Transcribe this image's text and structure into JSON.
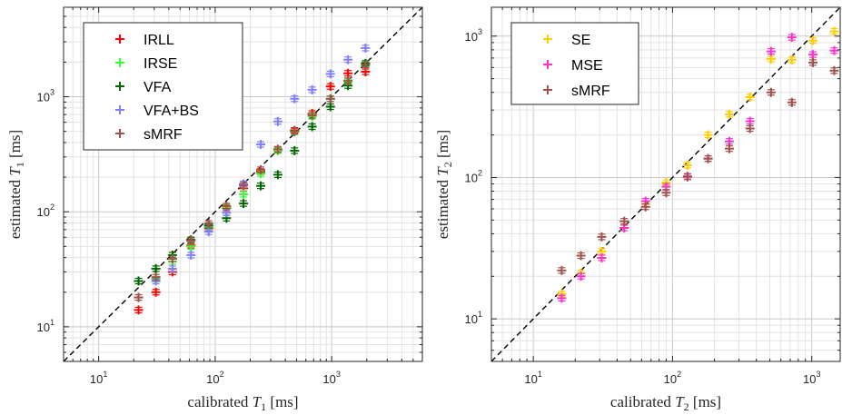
{
  "chart_data": [
    {
      "type": "scatter",
      "scale": "log-log",
      "xlabel": "calibrated T1 [ms]",
      "ylabel": "estimated T1 [ms]",
      "xlabel_parts": {
        "pre": "calibrated ",
        "var": "T",
        "sub": "1",
        "post": " [ms]"
      },
      "ylabel_parts": {
        "pre": "estimated ",
        "var": "T",
        "sub": "1",
        "post": " [ms]"
      },
      "xlim": [
        5,
        6000
      ],
      "ylim": [
        5,
        6000
      ],
      "grid": true,
      "identity_line": true,
      "legend_position": "top-left",
      "x_ticks": [
        {
          "value": 10,
          "base": "10",
          "exp": "1"
        },
        {
          "value": 100,
          "base": "10",
          "exp": "2"
        },
        {
          "value": 1000,
          "base": "10",
          "exp": "3"
        }
      ],
      "y_ticks": [
        {
          "value": 10,
          "base": "10",
          "exp": "1"
        },
        {
          "value": 100,
          "base": "10",
          "exp": "2"
        },
        {
          "value": 1000,
          "base": "10",
          "exp": "3"
        }
      ],
      "series": [
        {
          "name": "IRLL",
          "color": "#ff0000",
          "x": [
            22,
            31,
            43,
            62,
            88,
            125,
            175,
            246,
            345,
            480,
            680,
            975,
            1380,
            1950
          ],
          "y": [
            14,
            20,
            30,
            51,
            72,
            108,
            160,
            224,
            345,
            510,
            715,
            1230,
            1600,
            1650
          ]
        },
        {
          "name": "IRSE",
          "color": "#33ff33",
          "x": [
            22,
            31,
            43,
            62,
            88,
            125,
            175,
            246,
            345,
            480,
            680,
            975,
            1380,
            1950
          ],
          "y": [
            18,
            26,
            37,
            50,
            74,
            110,
            142,
            215,
            340,
            495,
            675,
            960,
            1350,
            1930
          ]
        },
        {
          "name": "VFA",
          "color": "#006600",
          "x": [
            22,
            31,
            43,
            62,
            88,
            125,
            175,
            246,
            345,
            480,
            680,
            975,
            1380,
            1950
          ],
          "y": [
            25,
            32,
            42,
            57,
            76,
            88,
            118,
            168,
            210,
            340,
            550,
            820,
            1250,
            1950
          ]
        },
        {
          "name": "VFA+BS",
          "color": "#8080ff",
          "x": [
            22,
            31,
            43,
            62,
            88,
            125,
            175,
            246,
            345,
            480,
            680,
            975,
            1380,
            1950
          ],
          "y": [
            18,
            25,
            32,
            42,
            67,
            98,
            175,
            385,
            610,
            960,
            1150,
            1580,
            2100,
            2650
          ]
        },
        {
          "name": "sMRF",
          "color": "#a0524b",
          "x": [
            22,
            31,
            43,
            62,
            88,
            125,
            175,
            246,
            345,
            480,
            680,
            975,
            1380,
            1950
          ],
          "y": [
            18,
            27,
            39,
            56,
            79,
            112,
            170,
            232,
            350,
            500,
            690,
            960,
            1380,
            1890
          ]
        }
      ]
    },
    {
      "type": "scatter",
      "scale": "log-log",
      "xlabel": "calibrated T2 [ms]",
      "ylabel": "estimated T2 [ms]",
      "xlabel_parts": {
        "pre": "calibrated ",
        "var": "T",
        "sub": "2",
        "post": " [ms]"
      },
      "ylabel_parts": {
        "pre": "estimated ",
        "var": "T",
        "sub": "2",
        "post": " [ms]"
      },
      "xlim": [
        5,
        1600
      ],
      "ylim": [
        5,
        1600
      ],
      "grid": true,
      "identity_line": true,
      "legend_position": "top-left",
      "x_ticks": [
        {
          "value": 10,
          "base": "10",
          "exp": "1"
        },
        {
          "value": 100,
          "base": "10",
          "exp": "2"
        },
        {
          "value": 1000,
          "base": "10",
          "exp": "3"
        }
      ],
      "y_ticks": [
        {
          "value": 10,
          "base": "10",
          "exp": "1"
        },
        {
          "value": 100,
          "base": "10",
          "exp": "2"
        },
        {
          "value": 1000,
          "base": "10",
          "exp": "3"
        }
      ],
      "series": [
        {
          "name": "SE",
          "color": "#ffcc00",
          "x": [
            16,
            22,
            31,
            45,
            64,
            90,
            128,
            180,
            256,
            360,
            510,
            720,
            1020,
            1450
          ],
          "y": [
            15,
            21,
            30,
            44,
            65,
            92,
            122,
            200,
            280,
            370,
            690,
            680,
            930,
            1080
          ]
        },
        {
          "name": "MSE",
          "color": "#ff33cc",
          "x": [
            16,
            22,
            31,
            45,
            64,
            90,
            128,
            180,
            256,
            360,
            510,
            720,
            1020,
            1450
          ],
          "y": [
            14,
            20,
            27,
            44,
            68,
            86,
            102,
            136,
            180,
            250,
            780,
            980,
            740,
            790
          ]
        },
        {
          "name": "sMRF",
          "color": "#a0524b",
          "x": [
            16,
            22,
            31,
            45,
            64,
            90,
            128,
            180,
            256,
            360,
            510,
            720,
            1020,
            1450
          ],
          "y": [
            22,
            28,
            38,
            49,
            62,
            78,
            101,
            136,
            160,
            222,
            400,
            340,
            650,
            570
          ]
        }
      ]
    }
  ]
}
